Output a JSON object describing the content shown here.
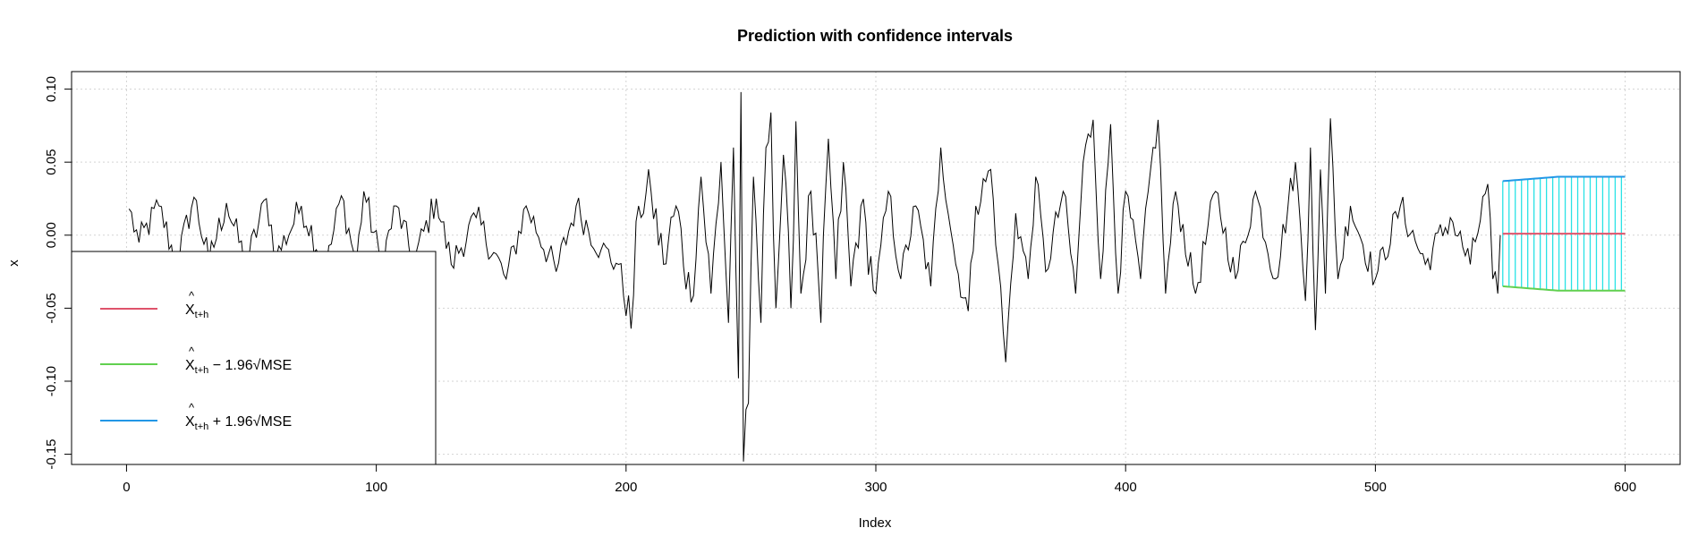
{
  "chart_data": {
    "type": "line",
    "title": "Prediction with confidence intervals",
    "xlabel": "Index",
    "ylabel": "x",
    "xlim": [
      -22,
      622
    ],
    "ylim": [
      -0.157,
      0.112
    ],
    "x_ticks": [
      0,
      100,
      200,
      300,
      400,
      500,
      600
    ],
    "x_tick_labels": [
      "0",
      "100",
      "200",
      "300",
      "400",
      "500",
      "600"
    ],
    "y_ticks": [
      -0.15,
      -0.1,
      -0.05,
      0.0,
      0.05,
      0.1
    ],
    "y_tick_labels": [
      "-0.15",
      "-0.10",
      "-0.05",
      "0.00",
      "0.05",
      "0.10"
    ],
    "grid": true,
    "colors": {
      "observed": "#000000",
      "prediction": "#DF536B",
      "lower": "#61D04F",
      "upper": "#2297E6",
      "interval": "#28E2E5"
    },
    "observed": {
      "x_range": [
        1,
        550
      ],
      "anchors": [
        [
          1,
          0.018
        ],
        [
          5,
          -0.005
        ],
        [
          13,
          0.02
        ],
        [
          20,
          -0.02
        ],
        [
          27,
          0.026
        ],
        [
          33,
          -0.018
        ],
        [
          40,
          0.022
        ],
        [
          48,
          -0.02
        ],
        [
          56,
          0.025
        ],
        [
          60,
          -0.015
        ],
        [
          70,
          0.02
        ],
        [
          80,
          -0.022
        ],
        [
          86,
          0.027
        ],
        [
          92,
          -0.02
        ],
        [
          95,
          0.03
        ],
        [
          102,
          -0.02
        ],
        [
          108,
          0.02
        ],
        [
          115,
          -0.018
        ],
        [
          124,
          0.025
        ],
        [
          130,
          -0.02
        ],
        [
          140,
          0.012
        ],
        [
          152,
          -0.03
        ],
        [
          160,
          0.02
        ],
        [
          172,
          -0.025
        ],
        [
          180,
          0.02
        ],
        [
          190,
          -0.01
        ],
        [
          197,
          -0.02
        ],
        [
          202,
          -0.064
        ],
        [
          205,
          0.02
        ],
        [
          210,
          0.03
        ],
        [
          215,
          -0.02
        ],
        [
          220,
          0.02
        ],
        [
          226,
          -0.046
        ],
        [
          230,
          0.04
        ],
        [
          234,
          -0.04
        ],
        [
          238,
          0.05
        ],
        [
          241,
          -0.06
        ],
        [
          243,
          0.06
        ],
        [
          245,
          -0.098
        ],
        [
          246,
          0.098
        ],
        [
          247,
          -0.155
        ],
        [
          249,
          -0.115
        ],
        [
          251,
          0.04
        ],
        [
          254,
          -0.06
        ],
        [
          256,
          0.06
        ],
        [
          258,
          0.084
        ],
        [
          260,
          -0.05
        ],
        [
          263,
          0.055
        ],
        [
          266,
          -0.05
        ],
        [
          268,
          0.078
        ],
        [
          270,
          -0.04
        ],
        [
          274,
          0.03
        ],
        [
          278,
          -0.06
        ],
        [
          281,
          0.066
        ],
        [
          284,
          -0.03
        ],
        [
          287,
          0.05
        ],
        [
          290,
          -0.035
        ],
        [
          294,
          0.02
        ],
        [
          300,
          -0.04
        ],
        [
          305,
          0.03
        ],
        [
          310,
          -0.03
        ],
        [
          316,
          0.02
        ],
        [
          322,
          -0.035
        ],
        [
          326,
          0.06
        ],
        [
          332,
          -0.02
        ],
        [
          337,
          -0.052
        ],
        [
          340,
          0.02
        ],
        [
          346,
          0.045
        ],
        [
          349,
          -0.02
        ],
        [
          352,
          -0.087
        ],
        [
          356,
          0.015
        ],
        [
          361,
          -0.03
        ],
        [
          364,
          0.04
        ],
        [
          368,
          -0.025
        ],
        [
          375,
          0.03
        ],
        [
          380,
          -0.04
        ],
        [
          383,
          0.05
        ],
        [
          387,
          0.079
        ],
        [
          390,
          -0.03
        ],
        [
          394,
          0.076
        ],
        [
          397,
          -0.04
        ],
        [
          400,
          0.03
        ],
        [
          406,
          -0.03
        ],
        [
          410,
          0.045
        ],
        [
          413,
          0.079
        ],
        [
          416,
          -0.04
        ],
        [
          420,
          0.03
        ],
        [
          428,
          -0.04
        ],
        [
          436,
          0.03
        ],
        [
          444,
          -0.03
        ],
        [
          452,
          0.03
        ],
        [
          460,
          -0.03
        ],
        [
          468,
          0.05
        ],
        [
          472,
          -0.045
        ],
        [
          474,
          0.06
        ],
        [
          476,
          -0.065
        ],
        [
          478,
          0.045
        ],
        [
          480,
          -0.04
        ],
        [
          482,
          0.08
        ],
        [
          485,
          -0.03
        ],
        [
          490,
          0.02
        ],
        [
          500,
          -0.03
        ],
        [
          510,
          0.02
        ],
        [
          520,
          -0.02
        ],
        [
          530,
          0.012
        ],
        [
          538,
          -0.02
        ],
        [
          545,
          0.035
        ],
        [
          547,
          -0.03
        ],
        [
          549,
          -0.04
        ],
        [
          550,
          0.0
        ]
      ]
    },
    "forecast": {
      "x_start": 551,
      "x_end": 600,
      "prediction": 0.001,
      "lower_start": -0.035,
      "lower_end": -0.038,
      "upper_start": 0.037,
      "upper_end": 0.04,
      "interval_bar_step": 2.5
    },
    "legend": {
      "placement": "bottom-left",
      "entries": [
        {
          "series": "prediction",
          "label_main": "X",
          "label_sub": "t+h",
          "label_rest": ""
        },
        {
          "series": "lower",
          "label_main": "X",
          "label_sub": "t+h",
          "label_rest": " − 1.96√MSE"
        },
        {
          "series": "upper",
          "label_main": "X",
          "label_sub": "t+h",
          "label_rest": " + 1.96√MSE"
        }
      ]
    }
  }
}
